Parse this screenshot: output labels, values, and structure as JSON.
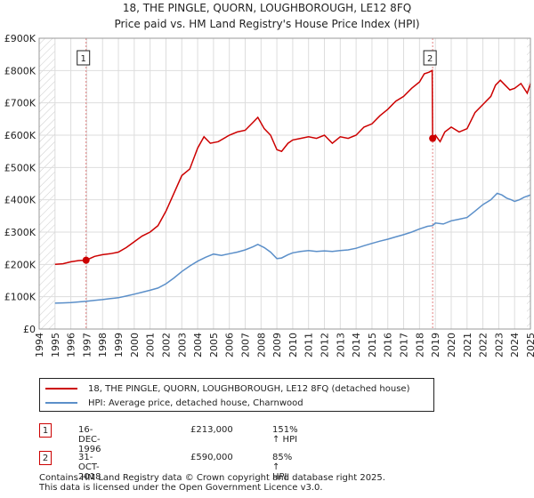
{
  "title_line1": "18, THE PINGLE, QUORN, LOUGHBOROUGH, LE12 8FQ",
  "title_line2": "Price paid vs. HM Land Registry's House Price Index (HPI)",
  "colors": {
    "price": "#cc0000",
    "hpi": "#5b8fc9",
    "grid": "#dddddd",
    "hatch": "#cccccc",
    "vline": "#e08080"
  },
  "legend": {
    "price_label": "18, THE PINGLE, QUORN, LOUGHBOROUGH, LE12 8FQ (detached house)",
    "hpi_label": "HPI: Average price, detached house, Charnwood"
  },
  "transactions": [
    {
      "num": "1",
      "date": "16-DEC-1996",
      "price": "£213,000",
      "hpi": "151% ↑ HPI"
    },
    {
      "num": "2",
      "date": "31-OCT-2018",
      "price": "£590,000",
      "hpi": "85% ↑ HPI"
    }
  ],
  "footer_line1": "Contains HM Land Registry data © Crown copyright and database right 2025.",
  "footer_line2": "This data is licensed under the Open Government Licence v3.0.",
  "chart_data": {
    "type": "line",
    "title": "18, THE PINGLE, QUORN, LOUGHBOROUGH, LE12 8FQ — Price paid vs. HM Land Registry's House Price Index (HPI)",
    "xlim": [
      1995,
      2025
    ],
    "ylim": [
      0,
      900000
    ],
    "y_ticks": [
      0,
      100000,
      200000,
      300000,
      400000,
      500000,
      600000,
      700000,
      800000,
      900000
    ],
    "y_tick_labels": [
      "£0",
      "£100K",
      "£200K",
      "£300K",
      "£400K",
      "£500K",
      "£600K",
      "£700K",
      "£800K",
      "£900K"
    ],
    "x_ticks": [
      1994,
      1995,
      1996,
      1997,
      1998,
      1999,
      2000,
      2001,
      2002,
      2003,
      2004,
      2005,
      2006,
      2007,
      2008,
      2009,
      2010,
      2011,
      2012,
      2013,
      2014,
      2015,
      2016,
      2017,
      2018,
      2019,
      2020,
      2021,
      2022,
      2023,
      2024,
      2025
    ],
    "sales": [
      {
        "label": "1",
        "x": 1996.96,
        "y": 213000
      },
      {
        "label": "2",
        "x": 2018.83,
        "y": 590000
      }
    ],
    "series": [
      {
        "name": "18, THE PINGLE, QUORN, LOUGHBOROUGH, LE12 8FQ (detached house)",
        "x": [
          1995.0,
          1995.5,
          1996.0,
          1996.5,
          1996.96,
          1997.5,
          1998.0,
          1998.5,
          1999.0,
          1999.5,
          2000.0,
          2000.5,
          2001.0,
          2001.5,
          2002.0,
          2002.5,
          2003.0,
          2003.5,
          2004.0,
          2004.4,
          2004.8,
          2005.3,
          2006.0,
          2006.5,
          2007.0,
          2007.5,
          2007.8,
          2008.2,
          2008.6,
          2009.0,
          2009.3,
          2009.7,
          2010.0,
          2010.5,
          2011.0,
          2011.5,
          2012.0,
          2012.5,
          2013.0,
          2013.5,
          2014.0,
          2014.5,
          2015.0,
          2015.5,
          2016.0,
          2016.5,
          2017.0,
          2017.5,
          2018.0,
          2018.3,
          2018.6,
          2018.8,
          2018.83,
          2019.0,
          2019.3,
          2019.6,
          2020.0,
          2020.5,
          2021.0,
          2021.5,
          2022.0,
          2022.5,
          2022.8,
          2023.1,
          2023.4,
          2023.7,
          2024.0,
          2024.4,
          2024.8,
          2025.0
        ],
        "y": [
          200000,
          202000,
          208000,
          212000,
          213000,
          225000,
          230000,
          233000,
          238000,
          252000,
          270000,
          288000,
          300000,
          320000,
          365000,
          420000,
          475000,
          495000,
          560000,
          595000,
          575000,
          580000,
          600000,
          610000,
          615000,
          640000,
          655000,
          620000,
          600000,
          555000,
          550000,
          575000,
          585000,
          590000,
          595000,
          590000,
          600000,
          575000,
          595000,
          590000,
          600000,
          625000,
          635000,
          660000,
          680000,
          705000,
          720000,
          745000,
          765000,
          790000,
          795000,
          800000,
          590000,
          600000,
          580000,
          610000,
          625000,
          610000,
          620000,
          670000,
          695000,
          720000,
          755000,
          770000,
          755000,
          740000,
          745000,
          760000,
          730000,
          760000
        ]
      },
      {
        "name": "HPI: Average price, detached house, Charnwood",
        "x": [
          1995.0,
          1995.5,
          1996.0,
          1996.5,
          1997.0,
          1997.5,
          1998.0,
          1998.5,
          1999.0,
          1999.5,
          2000.0,
          2000.5,
          2001.0,
          2001.5,
          2002.0,
          2002.5,
          2003.0,
          2003.5,
          2004.0,
          2004.5,
          2005.0,
          2005.5,
          2006.0,
          2006.5,
          2007.0,
          2007.5,
          2007.8,
          2008.2,
          2008.6,
          2009.0,
          2009.3,
          2009.7,
          2010.0,
          2010.5,
          2011.0,
          2011.5,
          2012.0,
          2012.5,
          2013.0,
          2013.5,
          2014.0,
          2014.5,
          2015.0,
          2015.5,
          2016.0,
          2016.5,
          2017.0,
          2017.5,
          2018.0,
          2018.5,
          2018.83,
          2019.0,
          2019.5,
          2020.0,
          2020.5,
          2021.0,
          2021.5,
          2022.0,
          2022.5,
          2022.9,
          2023.2,
          2023.5,
          2023.8,
          2024.0,
          2024.3,
          2024.6,
          2025.0
        ],
        "y": [
          80000,
          81000,
          82000,
          84000,
          86000,
          89000,
          91000,
          94000,
          97000,
          102000,
          108000,
          114000,
          120000,
          127000,
          140000,
          158000,
          178000,
          195000,
          210000,
          222000,
          232000,
          228000,
          233000,
          238000,
          245000,
          255000,
          262000,
          252000,
          238000,
          218000,
          220000,
          230000,
          236000,
          240000,
          243000,
          240000,
          242000,
          240000,
          243000,
          245000,
          250000,
          258000,
          265000,
          272000,
          278000,
          285000,
          292000,
          300000,
          310000,
          318000,
          320000,
          328000,
          325000,
          335000,
          340000,
          345000,
          365000,
          385000,
          400000,
          420000,
          415000,
          405000,
          400000,
          395000,
          400000,
          408000,
          415000
        ]
      }
    ]
  }
}
